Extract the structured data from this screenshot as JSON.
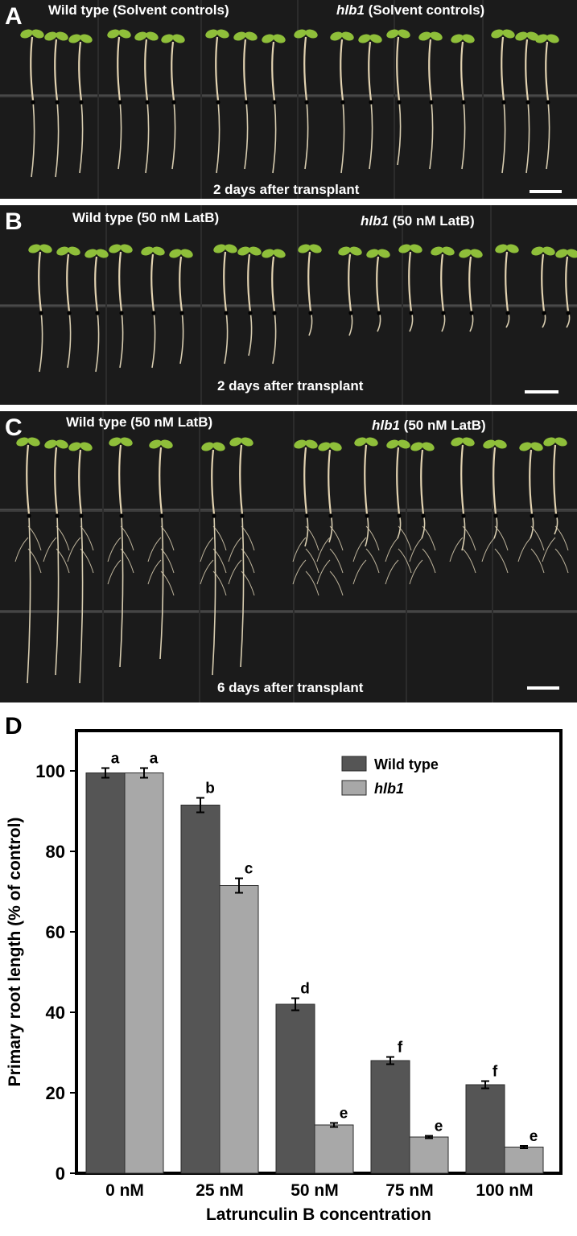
{
  "panels": {
    "a": {
      "letter": "A",
      "left_title": "Wild type (Solvent controls)",
      "right_title_genotype": "hlb1",
      "right_title_rest": " (Solvent controls)",
      "caption": "2 days after transplant"
    },
    "b": {
      "letter": "B",
      "left_title": "Wild type (50 nM LatB)",
      "right_title_genotype": "hlb1",
      "right_title_rest": " (50 nM LatB)",
      "caption": "2 days after transplant"
    },
    "c": {
      "letter": "C",
      "left_title": "Wild type (50 nM LatB)",
      "right_title_genotype": "hlb1",
      "right_title_rest": " (50 nM LatB)",
      "caption": "6 days after transplant"
    }
  },
  "chart_letter": "D",
  "colors": {
    "background": "#1b1b1b",
    "wild_type_bar": "#555555",
    "hlb1_bar": "#a8a8a8",
    "seedling_leaf": "#8fbf3a",
    "root": "#d8cdb0"
  },
  "chart_data": {
    "type": "bar",
    "categories": [
      "0 nM",
      "25 nM",
      "50 nM",
      "75 nM",
      "100 nM"
    ],
    "series": [
      {
        "name": "Wild type",
        "values": [
          99.5,
          91.5,
          42,
          28,
          22
        ],
        "errors": [
          1.2,
          1.8,
          1.5,
          0.9,
          0.9
        ],
        "letters": [
          "a",
          "b",
          "d",
          "f",
          "f"
        ]
      },
      {
        "name": "hlb1",
        "values": [
          99.5,
          71.5,
          12,
          9,
          6.5
        ],
        "errors": [
          1.2,
          1.8,
          0.5,
          0.3,
          0.3
        ],
        "letters": [
          "a",
          "c",
          "e",
          "e",
          "e"
        ]
      }
    ],
    "xlabel": "Latrunculin B concentration",
    "ylabel": "Primary root length (% of control)",
    "ylim": [
      0,
      110
    ],
    "yticks": [
      0,
      20,
      40,
      60,
      80,
      100
    ],
    "grid": false,
    "legend_position": "top-right"
  }
}
